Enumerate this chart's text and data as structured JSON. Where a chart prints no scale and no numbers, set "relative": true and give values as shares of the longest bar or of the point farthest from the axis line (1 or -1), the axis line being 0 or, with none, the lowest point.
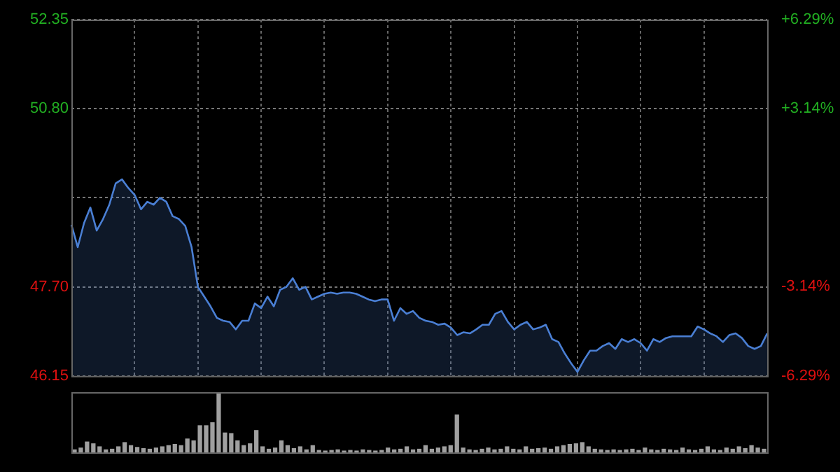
{
  "chart_data": [
    {
      "type": "area",
      "categories": [
        null,
        null,
        null,
        null,
        null,
        null,
        null,
        null,
        null,
        null,
        null,
        null,
        null,
        null,
        null,
        null,
        null,
        null,
        null,
        null,
        null,
        null,
        null,
        null,
        null,
        null,
        null,
        null,
        null,
        null,
        null,
        null,
        null,
        null,
        null,
        null,
        null,
        null,
        null,
        null,
        null,
        null,
        null,
        null,
        null,
        null,
        null,
        null,
        null,
        null,
        null,
        null,
        null,
        null,
        null,
        null,
        null,
        null,
        null,
        null,
        null,
        null,
        null,
        null,
        null,
        null,
        null,
        null,
        null,
        null,
        null,
        null,
        null,
        null,
        null,
        null,
        null,
        null,
        null,
        null,
        null,
        null,
        null,
        null,
        null,
        null,
        null,
        null,
        null,
        null,
        null,
        null,
        null,
        null,
        null,
        null,
        null,
        null,
        null,
        null,
        null,
        null,
        null,
        null,
        null,
        null,
        null,
        null,
        null,
        null,
        null
      ],
      "series": [
        {
          "color": "#4a7fd4",
          "values": [
            48.78,
            48.39,
            48.81,
            49.08,
            48.68,
            48.88,
            49.13,
            49.5,
            49.57,
            49.42,
            49.3,
            49.05,
            49.18,
            49.13,
            49.25,
            49.18,
            48.93,
            48.88,
            48.76,
            48.39,
            47.7,
            47.53,
            47.36,
            47.16,
            47.11,
            47.09,
            46.96,
            47.11,
            47.11,
            47.41,
            47.33,
            47.53,
            47.36,
            47.65,
            47.7,
            47.85,
            47.65,
            47.7,
            47.48,
            47.53,
            47.58,
            47.6,
            47.58,
            47.6,
            47.6,
            47.58,
            47.53,
            47.48,
            47.45,
            47.48,
            47.48,
            47.11,
            47.33,
            47.23,
            47.28,
            47.16,
            47.11,
            47.09,
            47.04,
            47.06,
            46.99,
            46.86,
            46.91,
            46.89,
            46.96,
            47.04,
            47.04,
            47.23,
            47.28,
            47.09,
            46.96,
            47.04,
            47.09,
            46.96,
            46.99,
            47.04,
            46.79,
            46.74,
            46.54,
            46.37,
            46.22,
            46.42,
            46.59,
            46.59,
            46.67,
            46.72,
            46.62,
            46.79,
            46.74,
            46.79,
            46.72,
            46.59,
            46.79,
            46.74,
            46.81,
            46.84,
            46.84,
            46.84,
            46.84,
            47.01,
            46.96,
            46.89,
            46.84,
            46.74,
            46.86,
            46.89,
            46.81,
            46.67,
            46.62,
            46.67,
            46.89
          ]
        }
      ],
      "ylim": [
        46.15,
        52.35
      ],
      "yticks": [
        46.15,
        {
          "value": 47.7,
          "label": "47.70"
        },
        {
          "value": 49.25,
          "label": null
        },
        {
          "value": 50.8,
          "label": "50.80"
        },
        52.35
      ],
      "y2lim": [
        -6.29,
        6.29
      ],
      "y2ticks": [
        {
          "value": -6.29,
          "label": "-6.29%"
        },
        {
          "value": -3.14,
          "label": "-3.14%"
        },
        {
          "value": 0,
          "label": null
        },
        {
          "value": 3.14,
          "label": "+3.14%"
        },
        {
          "value": 6.29,
          "label": "+6.29%"
        }
      ],
      "grid": true,
      "legend": false
    },
    {
      "type": "bar",
      "relative": true,
      "color": "#a0a0a0",
      "categories": [
        null,
        null,
        null,
        null,
        null,
        null,
        null,
        null,
        null,
        null,
        null,
        null,
        null,
        null,
        null,
        null,
        null,
        null,
        null,
        null,
        null,
        null,
        null,
        null,
        null,
        null,
        null,
        null,
        null,
        null,
        null,
        null,
        null,
        null,
        null,
        null,
        null,
        null,
        null,
        null,
        null,
        null,
        null,
        null,
        null,
        null,
        null,
        null,
        null,
        null,
        null,
        null,
        null,
        null,
        null,
        null,
        null,
        null,
        null,
        null,
        null,
        null,
        null,
        null,
        null,
        null,
        null,
        null,
        null,
        null,
        null,
        null,
        null,
        null,
        null,
        null,
        null,
        null,
        null,
        null,
        null,
        null,
        null,
        null,
        null,
        null,
        null,
        null,
        null,
        null,
        null,
        null,
        null,
        null,
        null,
        null,
        null,
        null,
        null,
        null,
        null,
        null,
        null,
        null,
        null,
        null,
        null,
        null,
        null,
        null,
        null
      ],
      "values": [
        0.05,
        0.08,
        0.18,
        0.15,
        0.1,
        0.05,
        0.06,
        0.1,
        0.17,
        0.12,
        0.09,
        0.07,
        0.06,
        0.08,
        0.1,
        0.12,
        0.14,
        0.12,
        0.23,
        0.2,
        0.45,
        0.45,
        0.5,
        1,
        0.33,
        0.32,
        0.2,
        0.12,
        0.15,
        0.37,
        0.1,
        0.06,
        0.08,
        0.2,
        0.12,
        0.07,
        0.1,
        0.05,
        0.12,
        0.04,
        0.03,
        0.04,
        0.05,
        0.03,
        0.04,
        0.03,
        0.05,
        0.04,
        0.03,
        0.04,
        0.08,
        0.05,
        0.06,
        0.1,
        0.05,
        0.06,
        0.12,
        0.06,
        0.08,
        0.1,
        0.12,
        0.63,
        0.08,
        0.05,
        0.04,
        0.06,
        0.08,
        0.05,
        0.06,
        0.1,
        0.06,
        0.05,
        0.1,
        0.06,
        0.07,
        0.08,
        0.06,
        0.1,
        0.12,
        0.14,
        0.15,
        0.17,
        0.1,
        0.06,
        0.05,
        0.04,
        0.05,
        0.04,
        0.05,
        0.06,
        0.04,
        0.08,
        0.05,
        0.04,
        0.06,
        0.05,
        0.04,
        0.08,
        0.05,
        0.04,
        0.06,
        0.1,
        0.05,
        0.04,
        0.08,
        0.06,
        0.1,
        0.07,
        0.12,
        0.08,
        0.06
      ]
    }
  ]
}
